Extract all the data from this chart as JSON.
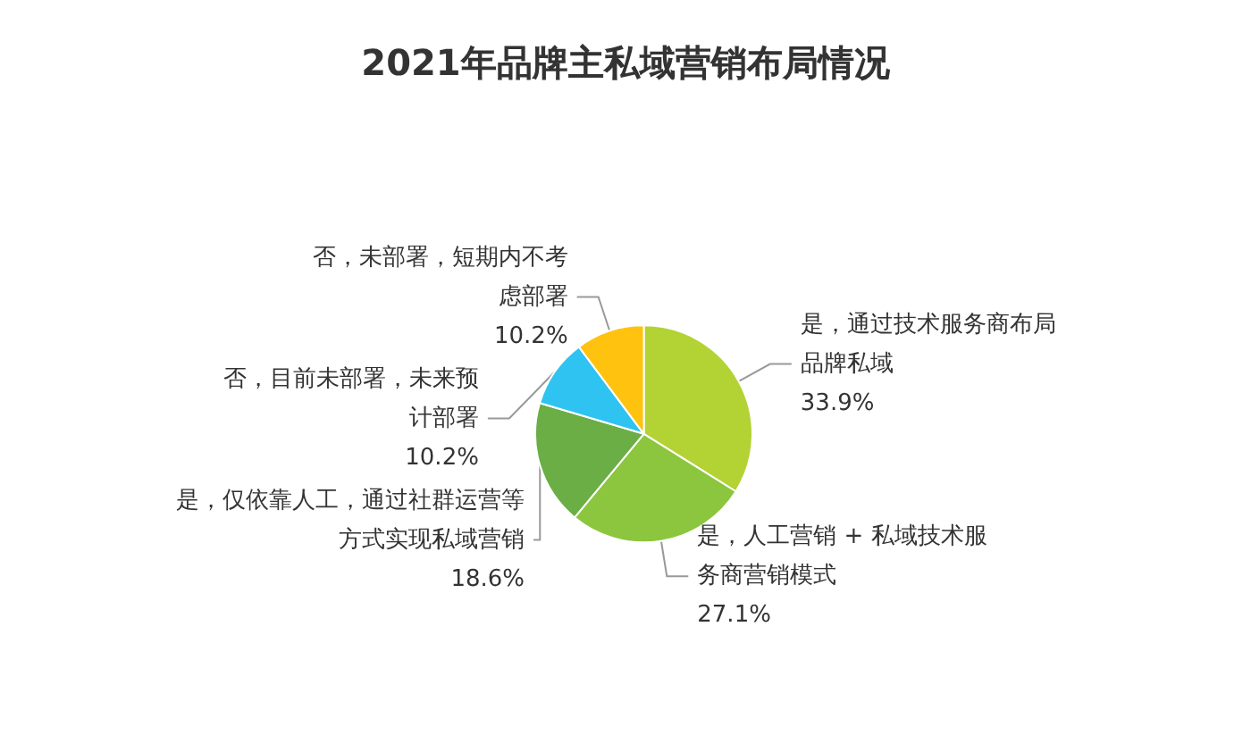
{
  "chart_data": {
    "type": "pie",
    "title": "2021年品牌主私域营销布局情况",
    "categories": [
      "是，通过技术服务商布局品牌私域",
      "是，人工营销 + 私域技术服务商营销模式",
      "是，仅依靠人工，通过社群运营等方式实现私域营销",
      "否，目前未部署，未来预计部署",
      "否，未部署，短期内不考虑部署"
    ],
    "values": [
      33.9,
      27.1,
      18.6,
      10.2,
      10.2
    ],
    "value_labels": [
      "33.9%",
      "27.1%",
      "18.6%",
      "10.2%",
      "10.2%"
    ],
    "colors": [
      "#b3d234",
      "#8cc63f",
      "#6aae45",
      "#2fc3f2",
      "#ffc20e"
    ],
    "legend": false
  }
}
